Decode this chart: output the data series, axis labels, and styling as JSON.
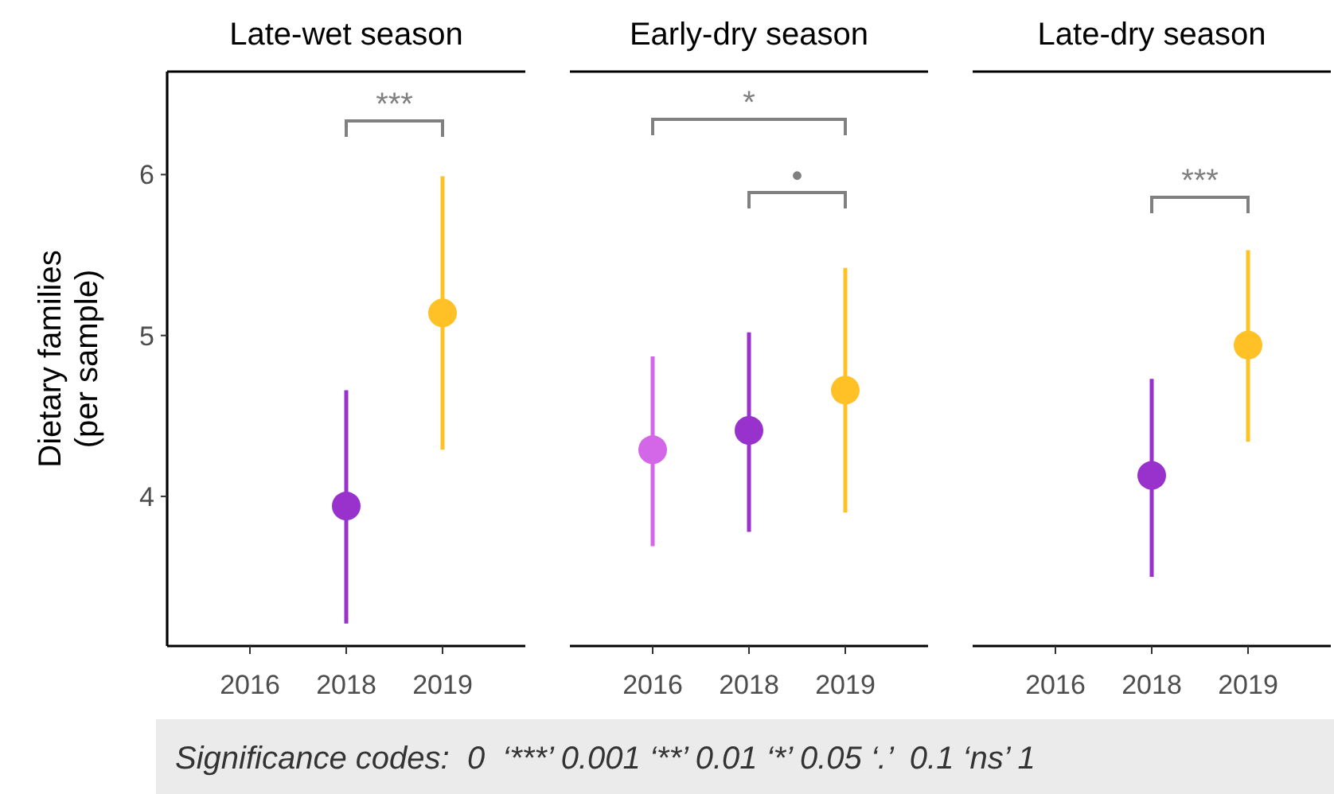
{
  "chart_data": [
    {
      "type": "scatter",
      "title": "Late-wet season",
      "ylabel": "Dietary families\n(per sample)",
      "categories": [
        "2016",
        "2018",
        "2019"
      ],
      "values": [
        null,
        3.94,
        5.14
      ],
      "errors": [
        null,
        [
          3.21,
          4.66
        ],
        [
          4.29,
          5.99
        ]
      ],
      "colors": [
        null,
        "#9932cc",
        "#ffc125"
      ],
      "ylim": [
        3.07,
        6.64
      ],
      "yticks": [
        4,
        5,
        6
      ],
      "marker": "circle",
      "grid": false,
      "annotations": [
        "***",
        "Significance codes:  0  ‘***’ 0.001 ‘**’ 0.01 ‘*’ 0.05 ‘.’  0.1 ‘ns’ 1"
      ]
    },
    {
      "type": "scatter",
      "title": "Early-dry season",
      "categories": [
        "2016",
        "2018",
        "2019"
      ],
      "values": [
        4.29,
        4.41,
        4.66
      ],
      "errors": [
        [
          3.69,
          4.87
        ],
        [
          3.78,
          5.02
        ],
        [
          3.9,
          5.42
        ]
      ],
      "colors": [
        "#d466e8",
        "#9932cc",
        "#ffc125"
      ],
      "ylim": [
        3.07,
        6.64
      ],
      "yticks": [
        4,
        5,
        6
      ],
      "tick_labels": "x",
      "marker": "circle",
      "grid": false,
      "annotations": [
        "*",
        "•"
      ]
    },
    {
      "type": "scatter",
      "title": "Late-dry season",
      "categories": [
        "2016",
        "2018",
        "2019"
      ],
      "values": [
        null,
        4.13,
        4.94
      ],
      "errors": [
        null,
        [
          3.5,
          4.73
        ],
        [
          4.34,
          5.53
        ]
      ],
      "colors": [
        null,
        "#9932cc",
        "#ffc125"
      ],
      "ylim": [
        3.07,
        6.64
      ],
      "yticks": [
        4,
        5,
        6
      ],
      "tick_labels": "x",
      "marker": "circle",
      "grid": false,
      "annotations": [
        "***"
      ]
    }
  ]
}
